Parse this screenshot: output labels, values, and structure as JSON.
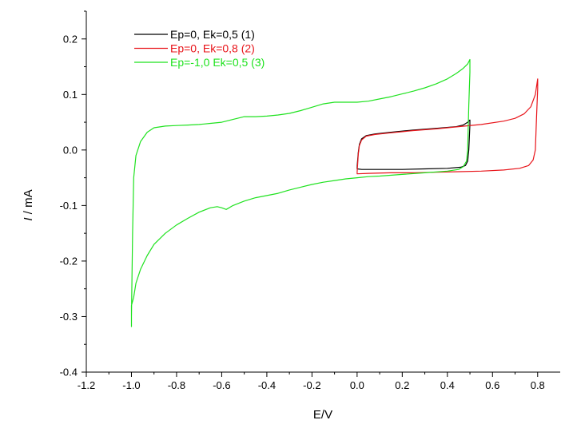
{
  "chart_data": {
    "type": "line",
    "title": "",
    "xlabel": "E/V",
    "ylabel_italic": "I",
    "ylabel_rest": " / mA",
    "xlim": [
      -1.2,
      0.9
    ],
    "ylim": [
      -0.4,
      0.25
    ],
    "xticks": [
      -1.2,
      -1.0,
      -0.8,
      -0.6,
      -0.4,
      -0.2,
      0.0,
      0.2,
      0.4,
      0.6,
      0.8
    ],
    "xtick_labels": [
      "-1.2",
      "-1.0",
      "-0.8",
      "-0.6",
      "-0.4",
      "-0.2",
      "0.0",
      "0.2",
      "0.4",
      "0.6",
      "0.8"
    ],
    "yticks": [
      -0.4,
      -0.3,
      -0.2,
      -0.1,
      0.0,
      0.1,
      0.2
    ],
    "ytick_labels": [
      "-0.4",
      "-0.3",
      "-0.2",
      "-0.1",
      "0.0",
      "0.1",
      "0.2"
    ],
    "legend_position": "top-left",
    "series": [
      {
        "name": "Ep=0, Ek=0,5 (1)",
        "color": "#000000",
        "points": [
          [
            0.0,
            -0.03
          ],
          [
            0.005,
            -0.005
          ],
          [
            0.01,
            0.01
          ],
          [
            0.02,
            0.02
          ],
          [
            0.04,
            0.026
          ],
          [
            0.08,
            0.029
          ],
          [
            0.15,
            0.032
          ],
          [
            0.25,
            0.036
          ],
          [
            0.35,
            0.039
          ],
          [
            0.44,
            0.042
          ],
          [
            0.47,
            0.045
          ],
          [
            0.49,
            0.05
          ],
          [
            0.5,
            0.054
          ],
          [
            0.5,
            0.045
          ],
          [
            0.495,
            0.0
          ],
          [
            0.49,
            -0.02
          ],
          [
            0.48,
            -0.028
          ],
          [
            0.46,
            -0.031
          ],
          [
            0.4,
            -0.033
          ],
          [
            0.3,
            -0.034
          ],
          [
            0.2,
            -0.035
          ],
          [
            0.1,
            -0.035
          ],
          [
            0.05,
            -0.035
          ],
          [
            0.02,
            -0.035
          ],
          [
            0.0,
            -0.034
          ],
          [
            0.0,
            -0.03
          ]
        ]
      },
      {
        "name": "Ep=0, Ek=0,8 (2)",
        "color": "#e8141a",
        "points": [
          [
            0.0,
            -0.04
          ],
          [
            0.005,
            -0.008
          ],
          [
            0.01,
            0.008
          ],
          [
            0.02,
            0.018
          ],
          [
            0.04,
            0.025
          ],
          [
            0.08,
            0.028
          ],
          [
            0.15,
            0.031
          ],
          [
            0.25,
            0.035
          ],
          [
            0.35,
            0.038
          ],
          [
            0.45,
            0.042
          ],
          [
            0.55,
            0.046
          ],
          [
            0.65,
            0.052
          ],
          [
            0.7,
            0.057
          ],
          [
            0.74,
            0.065
          ],
          [
            0.77,
            0.078
          ],
          [
            0.79,
            0.1
          ],
          [
            0.8,
            0.128
          ],
          [
            0.8,
            0.11
          ],
          [
            0.795,
            0.06
          ],
          [
            0.79,
            0.0
          ],
          [
            0.78,
            -0.018
          ],
          [
            0.76,
            -0.028
          ],
          [
            0.72,
            -0.033
          ],
          [
            0.65,
            -0.036
          ],
          [
            0.55,
            -0.038
          ],
          [
            0.45,
            -0.039
          ],
          [
            0.35,
            -0.04
          ],
          [
            0.25,
            -0.041
          ],
          [
            0.15,
            -0.041
          ],
          [
            0.05,
            -0.042
          ],
          [
            0.0,
            -0.043
          ],
          [
            0.0,
            -0.04
          ]
        ]
      },
      {
        "name": "Ep=-1,0 Ek=0,5 (3)",
        "color": "#1fe21f",
        "points": [
          [
            0.0,
            -0.05
          ],
          [
            -0.05,
            -0.052
          ],
          [
            -0.1,
            -0.055
          ],
          [
            -0.15,
            -0.058
          ],
          [
            -0.2,
            -0.062
          ],
          [
            -0.25,
            -0.067
          ],
          [
            -0.3,
            -0.072
          ],
          [
            -0.35,
            -0.078
          ],
          [
            -0.4,
            -0.082
          ],
          [
            -0.45,
            -0.086
          ],
          [
            -0.5,
            -0.092
          ],
          [
            -0.55,
            -0.1
          ],
          [
            -0.58,
            -0.107
          ],
          [
            -0.6,
            -0.104
          ],
          [
            -0.62,
            -0.102
          ],
          [
            -0.65,
            -0.104
          ],
          [
            -0.7,
            -0.112
          ],
          [
            -0.75,
            -0.123
          ],
          [
            -0.8,
            -0.135
          ],
          [
            -0.85,
            -0.15
          ],
          [
            -0.9,
            -0.17
          ],
          [
            -0.93,
            -0.19
          ],
          [
            -0.96,
            -0.215
          ],
          [
            -0.98,
            -0.24
          ],
          [
            -0.99,
            -0.265
          ],
          [
            -1.0,
            -0.28
          ],
          [
            -1.0,
            -0.318
          ],
          [
            -1.0,
            -0.3
          ],
          [
            -0.995,
            -0.15
          ],
          [
            -0.99,
            -0.05
          ],
          [
            -0.98,
            -0.01
          ],
          [
            -0.96,
            0.015
          ],
          [
            -0.93,
            0.032
          ],
          [
            -0.9,
            0.04
          ],
          [
            -0.85,
            0.043
          ],
          [
            -0.8,
            0.044
          ],
          [
            -0.75,
            0.045
          ],
          [
            -0.7,
            0.046
          ],
          [
            -0.65,
            0.048
          ],
          [
            -0.6,
            0.05
          ],
          [
            -0.55,
            0.055
          ],
          [
            -0.5,
            0.06
          ],
          [
            -0.45,
            0.06
          ],
          [
            -0.4,
            0.061
          ],
          [
            -0.35,
            0.063
          ],
          [
            -0.3,
            0.066
          ],
          [
            -0.25,
            0.071
          ],
          [
            -0.2,
            0.077
          ],
          [
            -0.15,
            0.083
          ],
          [
            -0.1,
            0.086
          ],
          [
            -0.05,
            0.086
          ],
          [
            0.0,
            0.086
          ],
          [
            0.05,
            0.088
          ],
          [
            0.1,
            0.092
          ],
          [
            0.15,
            0.096
          ],
          [
            0.2,
            0.101
          ],
          [
            0.25,
            0.106
          ],
          [
            0.3,
            0.112
          ],
          [
            0.35,
            0.119
          ],
          [
            0.4,
            0.128
          ],
          [
            0.44,
            0.138
          ],
          [
            0.47,
            0.147
          ],
          [
            0.49,
            0.155
          ],
          [
            0.5,
            0.163
          ],
          [
            0.5,
            0.14
          ],
          [
            0.495,
            0.08
          ],
          [
            0.49,
            0.0
          ],
          [
            0.485,
            -0.02
          ],
          [
            0.47,
            -0.03
          ],
          [
            0.45,
            -0.035
          ],
          [
            0.4,
            -0.038
          ],
          [
            0.3,
            -0.041
          ],
          [
            0.2,
            -0.044
          ],
          [
            0.1,
            -0.047
          ],
          [
            0.05,
            -0.048
          ],
          [
            0.0,
            -0.05
          ]
        ]
      }
    ]
  }
}
